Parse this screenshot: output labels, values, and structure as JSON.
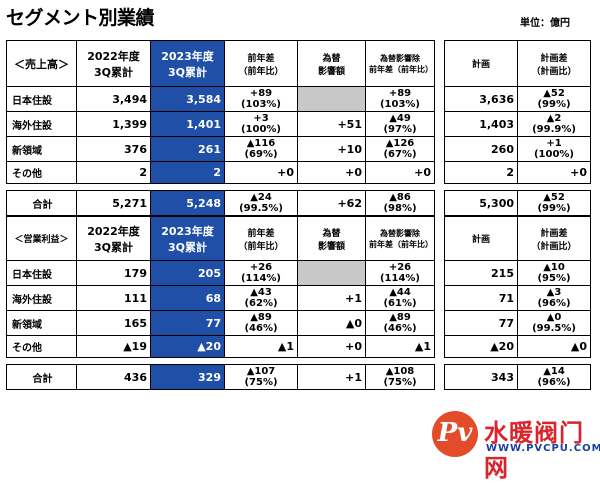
{
  "title": "セグメント別業績",
  "unit": "単位：億円",
  "sales": {
    "section_label": "＜売上高＞",
    "headers": {
      "fy2022_line1": "2022年度",
      "fy2022_line2": "3Q累計",
      "fy2023_line1": "2023年度",
      "fy2023_line2": "3Q累計",
      "yoy_line1": "前年差",
      "yoy_line2": "（前年比）",
      "fx_line1": "為替",
      "fx_line2": "影響額",
      "exfx_line1": "為替影響除",
      "exfx_line2": "前年差（前年比）",
      "plan": "計画",
      "plandiff_line1": "計画差",
      "plandiff_line2": "（計画比）"
    },
    "rows": [
      {
        "label": "日本住設",
        "y2022": "3,494",
        "y2023": "3,584",
        "yoy1": "+89",
        "yoy2": "(103%)",
        "fx": "",
        "exfx1": "+89",
        "exfx2": "(103%)",
        "plan": "3,636",
        "pd1": "▲52",
        "pd2": "(99%)"
      },
      {
        "label": "海外住設",
        "y2022": "1,399",
        "y2023": "1,401",
        "yoy1": "+3",
        "yoy2": "(100%)",
        "fx": "+51",
        "exfx1": "▲49",
        "exfx2": "(97%)",
        "plan": "1,403",
        "pd1": "▲2",
        "pd2": "(99.9%)"
      },
      {
        "label": "新領域",
        "y2022": "376",
        "y2023": "261",
        "yoy1": "▲116",
        "yoy2": "(69%)",
        "fx": "+10",
        "exfx1": "▲126",
        "exfx2": "(67%)",
        "plan": "260",
        "pd1": "+1",
        "pd2": "(100%)"
      },
      {
        "label": "その他",
        "y2022": "2",
        "y2023": "2",
        "yoy1": "+0",
        "yoy2": "",
        "fx": "+0",
        "exfx1": "+0",
        "exfx2": "",
        "plan": "2",
        "pd1": "+0",
        "pd2": ""
      }
    ],
    "total": {
      "label": "合計",
      "y2022": "5,271",
      "y2023": "5,248",
      "yoy1": "▲24",
      "yoy2": "(99.5%)",
      "fx": "+62",
      "exfx1": "▲86",
      "exfx2": "(98%)",
      "plan": "5,300",
      "pd1": "▲52",
      "pd2": "(99%)"
    }
  },
  "profit": {
    "section_label": "＜営業利益＞",
    "headers": {
      "fy2022_line1": "2022年度",
      "fy2022_line2": "3Q累計",
      "fy2023_line1": "2023年度",
      "fy2023_line2": "3Q累計",
      "yoy_line1": "前年差",
      "yoy_line2": "（前年比）",
      "fx_line1": "為替",
      "fx_line2": "影響額",
      "exfx_line1": "為替影響除",
      "exfx_line2": "前年差（前年比）",
      "plan": "計画",
      "plandiff_line1": "計画差",
      "plandiff_line2": "（計画比）"
    },
    "rows": [
      {
        "label": "日本住設",
        "y2022": "179",
        "y2023": "205",
        "yoy1": "+26",
        "yoy2": "(114%)",
        "fx": "",
        "exfx1": "+26",
        "exfx2": "(114%)",
        "plan": "215",
        "pd1": "▲10",
        "pd2": "(95%)"
      },
      {
        "label": "海外住設",
        "y2022": "111",
        "y2023": "68",
        "yoy1": "▲43",
        "yoy2": "(62%)",
        "fx": "+1",
        "exfx1": "▲44",
        "exfx2": "(61%)",
        "plan": "71",
        "pd1": "▲3",
        "pd2": "(96%)"
      },
      {
        "label": "新領域",
        "y2022": "165",
        "y2023": "77",
        "yoy1": "▲89",
        "yoy2": "(46%)",
        "fx": "▲0",
        "exfx1": "▲89",
        "exfx2": "(46%)",
        "plan": "77",
        "pd1": "▲0",
        "pd2": "(99.5%)"
      },
      {
        "label": "その他",
        "y2022": "▲19",
        "y2023": "▲20",
        "yoy1": "▲1",
        "yoy2": "",
        "fx": "+0",
        "exfx1": "▲1",
        "exfx2": "",
        "plan": "▲20",
        "pd1": "▲0",
        "pd2": ""
      }
    ],
    "total": {
      "label": "合計",
      "y2022": "436",
      "y2023": "329",
      "yoy1": "▲107",
      "yoy2": "(75%)",
      "fx": "+1",
      "exfx1": "▲108",
      "exfx2": "(75%)",
      "plan": "343",
      "pd1": "▲14",
      "pd2": "(96%)"
    }
  },
  "watermark": {
    "mark": "Pv",
    "name": "水暖阀门网",
    "url": "WWW.PVCPU.COM"
  },
  "colors": {
    "highlight": "#1f4fa6",
    "gray": "#c8c8c8",
    "logo_red": "#d9242b",
    "logo_blue": "#1b3f9b"
  }
}
